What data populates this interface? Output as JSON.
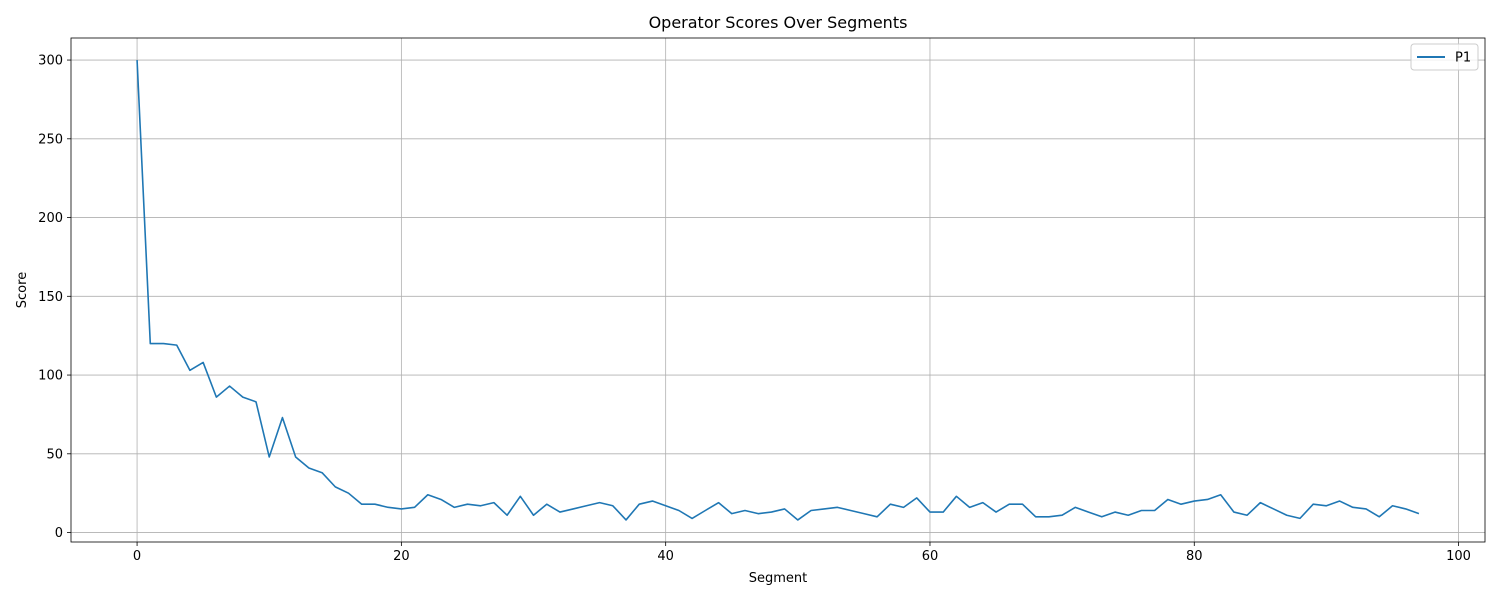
{
  "chart_data": {
    "type": "line",
    "title": "Operator Scores Over Segments",
    "xlabel": "Segment",
    "ylabel": "Score",
    "xlim": [
      -5,
      102
    ],
    "ylim": [
      -6,
      314
    ],
    "x_ticks": [
      0,
      20,
      40,
      60,
      80,
      100
    ],
    "y_ticks": [
      0,
      50,
      100,
      150,
      200,
      250,
      300
    ],
    "grid": true,
    "legend": "top-right",
    "series": [
      {
        "name": "P1",
        "color": "#1f77b4",
        "values": [
          300,
          120,
          120,
          119,
          103,
          108,
          86,
          93,
          86,
          83,
          48,
          73,
          48,
          41,
          38,
          29,
          25,
          18,
          18,
          16,
          15,
          16,
          24,
          21,
          16,
          18,
          17,
          19,
          11,
          23,
          11,
          18,
          13,
          15,
          17,
          19,
          17,
          8,
          18,
          20,
          17,
          14,
          9,
          14,
          19,
          12,
          14,
          12,
          13,
          15,
          8,
          14,
          15,
          16,
          14,
          12,
          10,
          18,
          16,
          22,
          13,
          13,
          23,
          16,
          19,
          13,
          18,
          18,
          10,
          10,
          11,
          16,
          13,
          10,
          13,
          11,
          14,
          14,
          21,
          18,
          20,
          21,
          24,
          13,
          11,
          19,
          15,
          11,
          9,
          18,
          17,
          20,
          16,
          15,
          10,
          17,
          15,
          12
        ]
      }
    ]
  }
}
